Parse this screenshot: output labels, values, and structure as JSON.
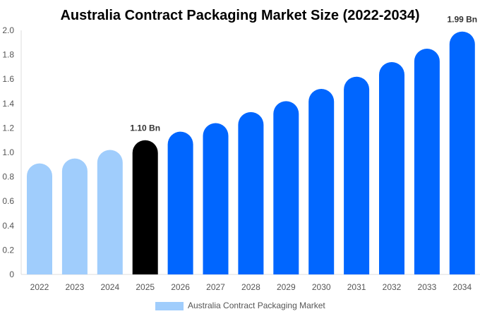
{
  "chart_data": {
    "type": "bar",
    "title": "Australia Contract Packaging Market Size (2022-2034)",
    "categories": [
      "2022",
      "2023",
      "2024",
      "2025",
      "2026",
      "2027",
      "2028",
      "2029",
      "2030",
      "2031",
      "2032",
      "2033",
      "2034"
    ],
    "series": [
      {
        "name": "Australia Contract Packaging Market",
        "values": [
          0.91,
          0.95,
          1.02,
          1.1,
          1.17,
          1.24,
          1.33,
          1.42,
          1.52,
          1.62,
          1.74,
          1.85,
          1.99
        ]
      }
    ],
    "data_labels": {
      "3": "1.10 Bn",
      "12": "1.99 Bn"
    },
    "ylim": [
      0,
      2.0
    ],
    "yticks": [
      "0",
      "0.2",
      "0.4",
      "0.6",
      "0.8",
      "1.0",
      "1.2",
      "1.4",
      "1.6",
      "1.8",
      "2.0"
    ],
    "xlabel": "",
    "ylabel": "",
    "grid": false,
    "legend_position": "bottom",
    "colors": {
      "historical": "#a0cdfc",
      "current": "#000000",
      "forecast": "#0066ff",
      "legend": "#a0cdfc"
    }
  }
}
